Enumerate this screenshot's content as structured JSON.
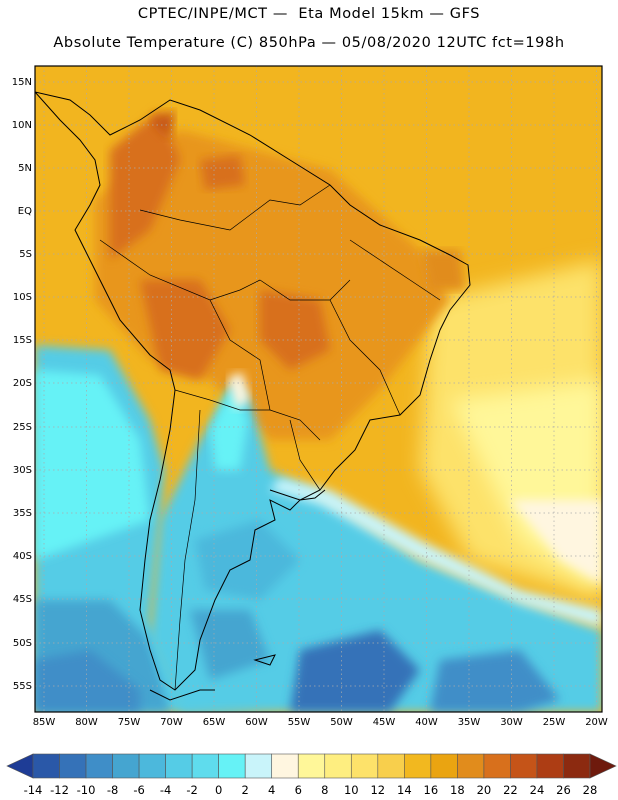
{
  "title_line1": "CPTEC/INPE/MCT —  Eta Model 15km — GFS",
  "title_line2": "Absolute Temperature (C) 850hPa — 05/08/2020 12UTC fct=198h",
  "map": {
    "lat_labels": [
      "15N",
      "10N",
      "5N",
      "EQ",
      "5S",
      "10S",
      "15S",
      "20S",
      "25S",
      "30S",
      "35S",
      "40S",
      "45S",
      "50S",
      "55S"
    ],
    "lon_labels": [
      "85W",
      "80W",
      "75W",
      "70W",
      "65W",
      "60W",
      "55W",
      "50W",
      "45W",
      "40W",
      "35W",
      "30W",
      "25W",
      "20W"
    ],
    "lat_range": [
      15.5,
      -58.0
    ],
    "lon_range": [
      -86.5,
      -19.8
    ]
  },
  "colorbar": {
    "labels": [
      "-14",
      "-12",
      "-10",
      "-8",
      "-6",
      "-4",
      "-2",
      "0",
      "2",
      "4",
      "6",
      "8",
      "10",
      "12",
      "14",
      "16",
      "18",
      "20",
      "22",
      "24",
      "26",
      "28"
    ],
    "colors": [
      "#1e3c96",
      "#2a58a8",
      "#3572b8",
      "#3f8ec8",
      "#45a5d0",
      "#4cb8dc",
      "#55cce6",
      "#5fdced",
      "#66f2f6",
      "#c9f4fa",
      "#fff6e0",
      "#fff799",
      "#feee80",
      "#fde26a",
      "#f8cf4c",
      "#f2b81f",
      "#eaa411",
      "#e18c1c",
      "#d8701c",
      "#c55418",
      "#ad3d14",
      "#8c2a10",
      "#6e1a0d"
    ]
  }
}
